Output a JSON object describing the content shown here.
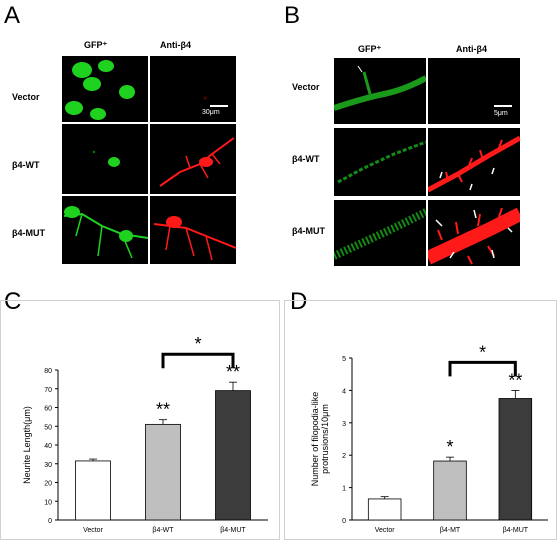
{
  "panels": {
    "A": {
      "letter": "A",
      "col_headers": [
        "GFP⁺",
        "Anti-β4"
      ],
      "row_labels": [
        "Vector",
        "β4-WT",
        "β4-MUT"
      ],
      "scale_bar": "30μm"
    },
    "B": {
      "letter": "B",
      "col_headers": [
        "GFP⁺",
        "Anti-β4"
      ],
      "row_labels": [
        "Vector",
        "β4-WT",
        "β4-MUT"
      ],
      "scale_bar": "5μm"
    },
    "C": {
      "letter": "C"
    },
    "D": {
      "letter": "D"
    }
  },
  "colors": {
    "green": "#1fd21f",
    "red": "#ff1a1a",
    "bar_white": "#ffffff",
    "bar_gray": "#bfbfbf",
    "bar_dark": "#3c3c3c"
  },
  "chart_data": [
    {
      "type": "bar",
      "categories": [
        "Vector",
        "β4-WT",
        "β4-MUT"
      ],
      "values": [
        31.5,
        51,
        69
      ],
      "errors": [
        1,
        2.5,
        4.5
      ],
      "significance": [
        "",
        "**",
        "**"
      ],
      "bracket": {
        "from": "β4-WT",
        "to": "β4-MUT",
        "label": "*"
      },
      "ylabel": "Neurite Length(μm)",
      "ylim": [
        0,
        80
      ],
      "yticks": [
        0,
        10,
        20,
        30,
        40,
        50,
        60,
        70,
        80
      ],
      "bar_colors": [
        "#ffffff",
        "#bfbfbf",
        "#3c3c3c"
      ]
    },
    {
      "type": "bar",
      "categories": [
        "Vector",
        "β4-MT",
        "β4-MUT"
      ],
      "values": [
        0.65,
        1.82,
        3.75
      ],
      "errors": [
        0.07,
        0.12,
        0.25
      ],
      "significance": [
        "",
        "*",
        "**"
      ],
      "bracket": {
        "from": "β4-MT",
        "to": "β4-MUT",
        "label": "*"
      },
      "ylabel": "Number of filopodia-like protrusions/10μm",
      "ylim": [
        0,
        5
      ],
      "yticks": [
        0,
        1,
        2,
        3,
        4,
        5
      ],
      "bar_colors": [
        "#ffffff",
        "#bfbfbf",
        "#3c3c3c"
      ]
    }
  ]
}
